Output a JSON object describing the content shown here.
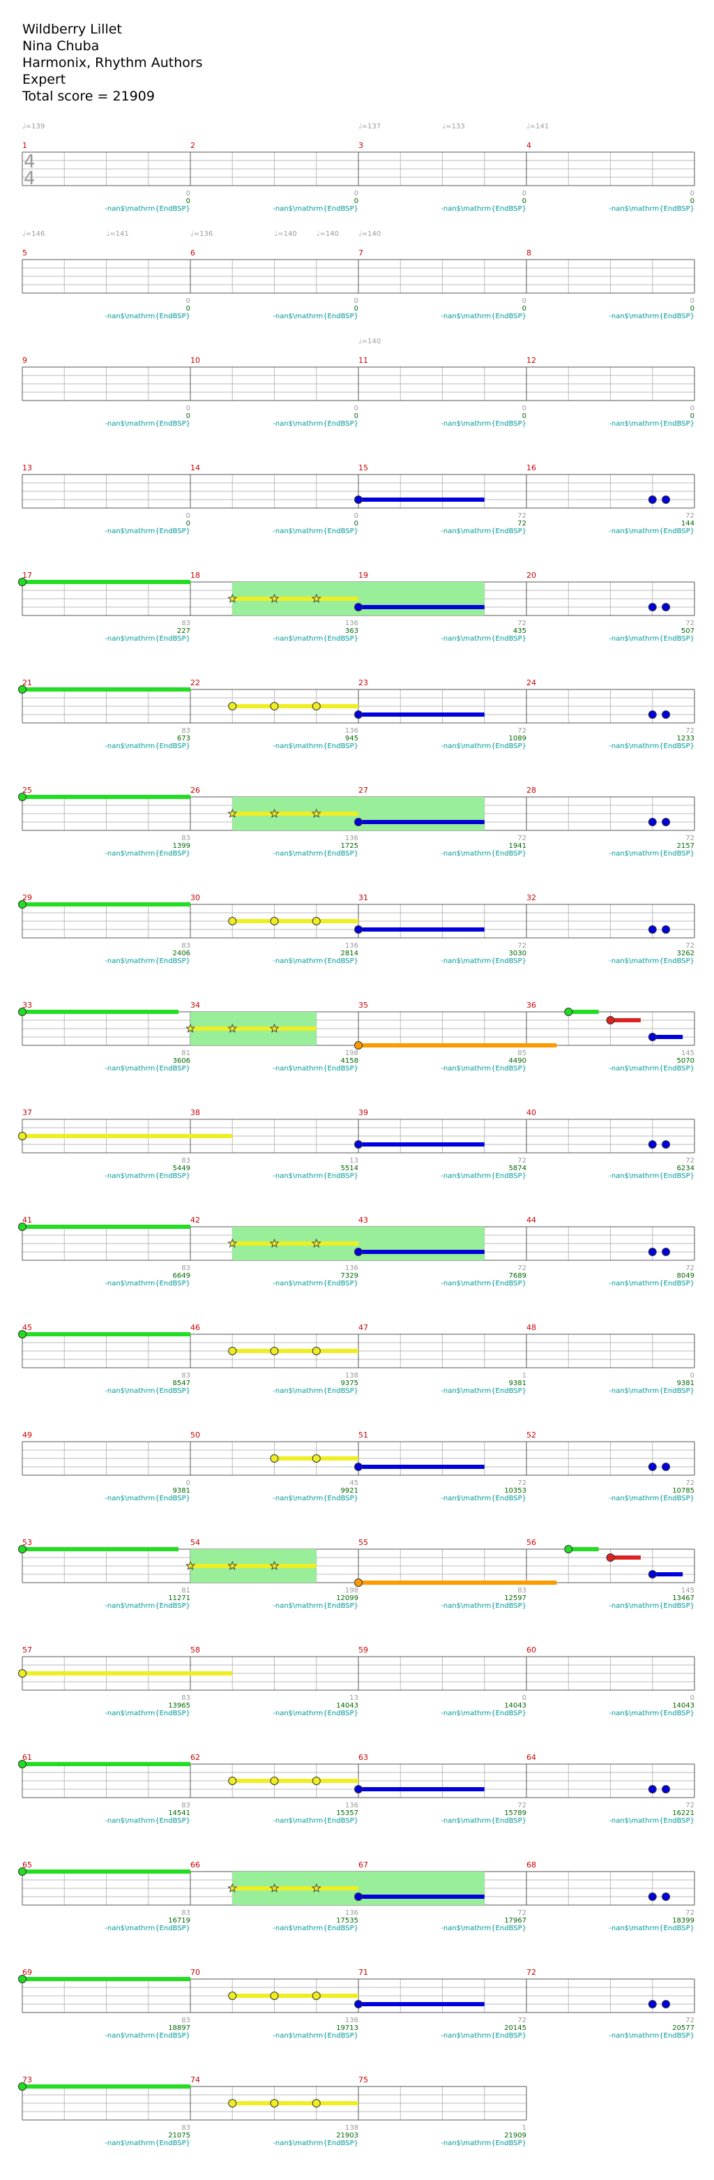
{
  "song": {
    "title": "Wildberry Lillet",
    "artist": "Nina Chuba",
    "charter": "Harmonix, Rhythm Authors",
    "difficulty": "Expert",
    "total_score_label": "Total score = 21909"
  },
  "chart_data": {
    "type": "table",
    "time_signature": [
      "4",
      "4"
    ],
    "measures_per_row": 4,
    "measure_count": 75,
    "lanes": 5,
    "colors": {
      "measure_number": "#cc0000",
      "measure_score": "#999999",
      "cumulative_score": "#006600",
      "sp_label": "#009999",
      "tempo": "#999999",
      "green": "#22dd22",
      "red": "#dd2222",
      "yellow": "#eeee22",
      "blue": "#0000dd",
      "orange": "#ff9900",
      "star_power": "#99ee99"
    },
    "sp_label": "-nan$\\mathrm{EndBSP}",
    "rows": [
      {
        "tempos": [
          {
            "m": 0,
            "f": 0.0,
            "t": "♩=139"
          },
          {
            "m": 2,
            "f": 0.0,
            "t": "♩=137"
          },
          {
            "m": 2,
            "f": 0.5,
            "t": "♩=133"
          },
          {
            "m": 3,
            "f": 0.0,
            "t": "♩=141"
          }
        ],
        "scores": [
          {
            "s": "0",
            "c": "0"
          },
          {
            "s": "0",
            "c": "0"
          },
          {
            "s": "0",
            "c": "0"
          },
          {
            "s": "0",
            "c": "0"
          }
        ]
      },
      {
        "tempos": [
          {
            "m": 0,
            "f": 0.0,
            "t": "♩=146"
          },
          {
            "m": 0,
            "f": 0.5,
            "t": "♩=141"
          },
          {
            "m": 1,
            "f": 0.0,
            "t": "♩=136"
          },
          {
            "m": 1,
            "f": 0.5,
            "t": "♩=140"
          },
          {
            "m": 1,
            "f": 0.75,
            "t": "♩=140"
          },
          {
            "m": 2,
            "f": 0.0,
            "t": "♩=140"
          }
        ],
        "scores": [
          {
            "s": "0",
            "c": "0"
          },
          {
            "s": "0",
            "c": "0"
          },
          {
            "s": "0",
            "c": "0"
          },
          {
            "s": "0",
            "c": "0"
          }
        ]
      },
      {
        "tempos": [
          {
            "m": 2,
            "f": 0.0,
            "t": "♩=140"
          }
        ],
        "scores": [
          {
            "s": "0",
            "c": "0"
          },
          {
            "s": "0",
            "c": "0"
          },
          {
            "s": "0",
            "c": "0"
          },
          {
            "s": "0",
            "c": "0"
          }
        ]
      },
      {
        "tempos": [],
        "scores": [
          {
            "s": "0",
            "c": "0"
          },
          {
            "s": "0",
            "c": "0"
          },
          {
            "s": "72",
            "c": "72"
          },
          {
            "s": "72",
            "c": "144"
          }
        ],
        "pattern": "intro"
      },
      {
        "tempos": [],
        "scores": [
          {
            "s": "83",
            "c": "227"
          },
          {
            "s": "136",
            "c": "363"
          },
          {
            "s": "72",
            "c": "435"
          },
          {
            "s": "72",
            "c": "507"
          }
        ],
        "pattern": "A_star"
      },
      {
        "tempos": [],
        "scores": [
          {
            "s": "83",
            "c": "673"
          },
          {
            "s": "136",
            "c": "945"
          },
          {
            "s": "72",
            "c": "1089"
          },
          {
            "s": "72",
            "c": "1233"
          }
        ],
        "pattern": "A"
      },
      {
        "tempos": [],
        "scores": [
          {
            "s": "83",
            "c": "1399"
          },
          {
            "s": "136",
            "c": "1725"
          },
          {
            "s": "72",
            "c": "1941"
          },
          {
            "s": "72",
            "c": "2157"
          }
        ],
        "pattern": "A_star"
      },
      {
        "tempos": [],
        "scores": [
          {
            "s": "83",
            "c": "2406"
          },
          {
            "s": "136",
            "c": "2814"
          },
          {
            "s": "72",
            "c": "3030"
          },
          {
            "s": "72",
            "c": "3262"
          }
        ],
        "pattern": "A"
      },
      {
        "tempos": [],
        "scores": [
          {
            "s": "81",
            "c": "3606"
          },
          {
            "s": "198",
            "c": "4158"
          },
          {
            "s": "85",
            "c": "4490"
          },
          {
            "s": "145",
            "c": "5070"
          }
        ],
        "pattern": "B_star"
      },
      {
        "tempos": [],
        "scores": [
          {
            "s": "83",
            "c": "5449"
          },
          {
            "s": "13",
            "c": "5514"
          },
          {
            "s": "72",
            "c": "5874"
          },
          {
            "s": "72",
            "c": "6234"
          }
        ],
        "pattern": "C"
      },
      {
        "tempos": [],
        "scores": [
          {
            "s": "83",
            "c": "6649"
          },
          {
            "s": "136",
            "c": "7329"
          },
          {
            "s": "72",
            "c": "7689"
          },
          {
            "s": "72",
            "c": "8049"
          }
        ],
        "pattern": "A_star"
      },
      {
        "tempos": [],
        "scores": [
          {
            "s": "83",
            "c": "8547"
          },
          {
            "s": "138",
            "c": "9375"
          },
          {
            "s": "1",
            "c": "9381"
          },
          {
            "s": "0",
            "c": "9381"
          }
        ],
        "pattern": "D"
      },
      {
        "tempos": [],
        "scores": [
          {
            "s": "0",
            "c": "9381"
          },
          {
            "s": "45",
            "c": "9921"
          },
          {
            "s": "72",
            "c": "10353"
          },
          {
            "s": "72",
            "c": "10785"
          }
        ],
        "pattern": "E"
      },
      {
        "tempos": [],
        "scores": [
          {
            "s": "81",
            "c": "11271"
          },
          {
            "s": "198",
            "c": "12099"
          },
          {
            "s": "83",
            "c": "12597"
          },
          {
            "s": "145",
            "c": "13467"
          }
        ],
        "pattern": "B_star"
      },
      {
        "tempos": [],
        "scores": [
          {
            "s": "83",
            "c": "13965"
          },
          {
            "s": "13",
            "c": "14043"
          },
          {
            "s": "0",
            "c": "14043"
          },
          {
            "s": "0",
            "c": "14043"
          }
        ],
        "pattern": "C2"
      },
      {
        "tempos": [],
        "scores": [
          {
            "s": "83",
            "c": "14541"
          },
          {
            "s": "136",
            "c": "15357"
          },
          {
            "s": "72",
            "c": "15789"
          },
          {
            "s": "72",
            "c": "16221"
          }
        ],
        "pattern": "A"
      },
      {
        "tempos": [],
        "scores": [
          {
            "s": "83",
            "c": "16719"
          },
          {
            "s": "136",
            "c": "17535"
          },
          {
            "s": "72",
            "c": "17967"
          },
          {
            "s": "72",
            "c": "18399"
          }
        ],
        "pattern": "A_star"
      },
      {
        "tempos": [],
        "scores": [
          {
            "s": "83",
            "c": "18897"
          },
          {
            "s": "136",
            "c": "19713"
          },
          {
            "s": "72",
            "c": "20145"
          },
          {
            "s": "72",
            "c": "20577"
          }
        ],
        "pattern": "A"
      },
      {
        "tempos": [],
        "scores": [
          {
            "s": "83",
            "c": "21075"
          },
          {
            "s": "138",
            "c": "21903"
          },
          {
            "s": "1",
            "c": "21909"
          }
        ],
        "pattern": "D"
      }
    ]
  }
}
